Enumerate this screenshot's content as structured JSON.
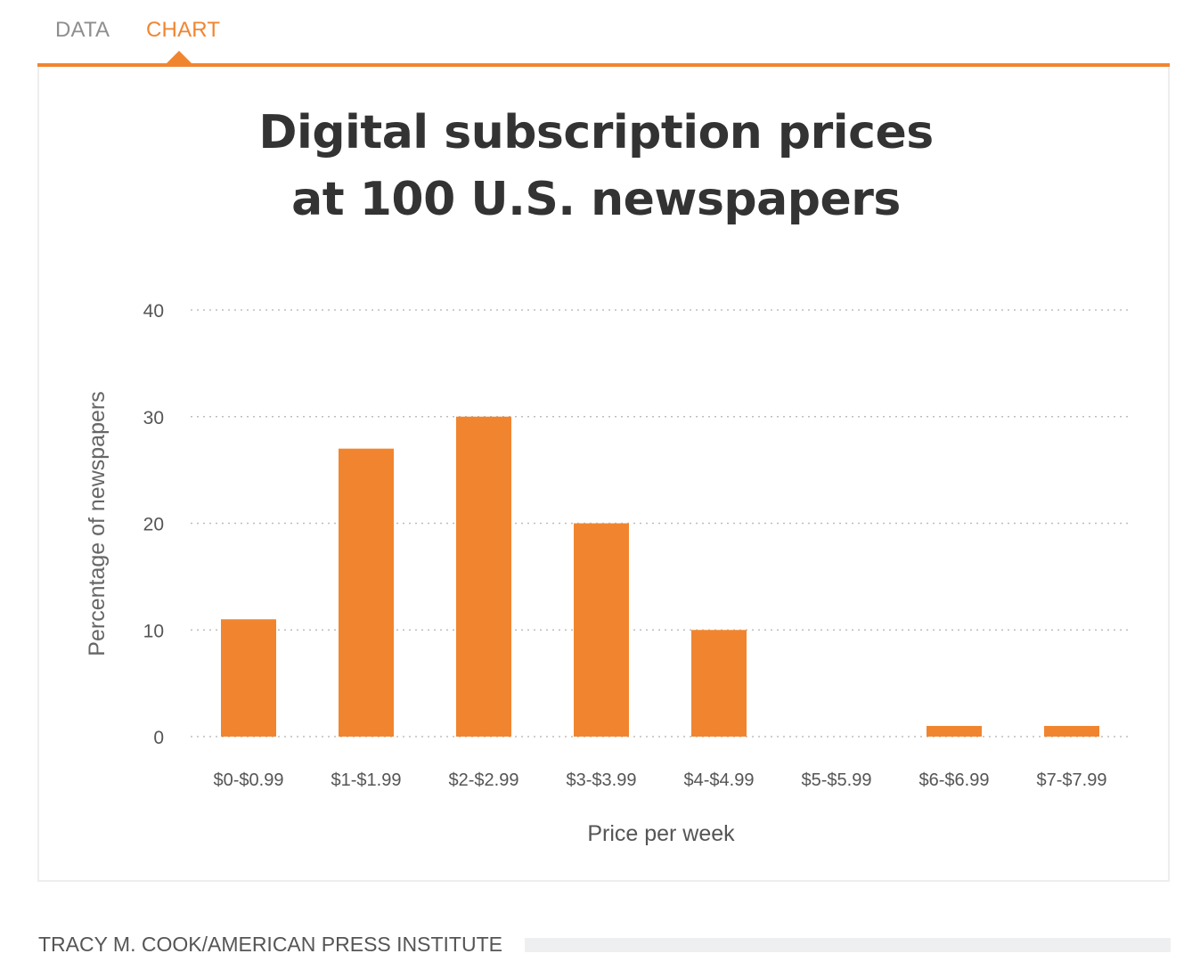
{
  "tabs": [
    {
      "label": "DATA",
      "active": false
    },
    {
      "label": "CHART",
      "active": true
    }
  ],
  "colors": {
    "accent": "#f1852f",
    "bar": "#f1852f",
    "text": "#333333",
    "muted": "#666666"
  },
  "chart_data": {
    "type": "bar",
    "title_lines": [
      "Digital subscription prices",
      "at 100 U.S. newspapers"
    ],
    "categories": [
      "$0-$0.99",
      "$1-$1.99",
      "$2-$2.99",
      "$3-$3.99",
      "$4-$4.99",
      "$5-$5.99",
      "$6-$6.99",
      "$7-$7.99"
    ],
    "values": [
      11,
      27,
      30,
      20,
      10,
      0,
      1,
      1
    ],
    "xlabel": "Price per week",
    "ylabel": "Percentage of newspapers",
    "ylim": [
      0,
      40
    ],
    "yticks": [
      0,
      10,
      20,
      30,
      40
    ],
    "grid": true
  },
  "footer": {
    "credit": "TRACY M. COOK/AMERICAN PRESS INSTITUTE"
  }
}
